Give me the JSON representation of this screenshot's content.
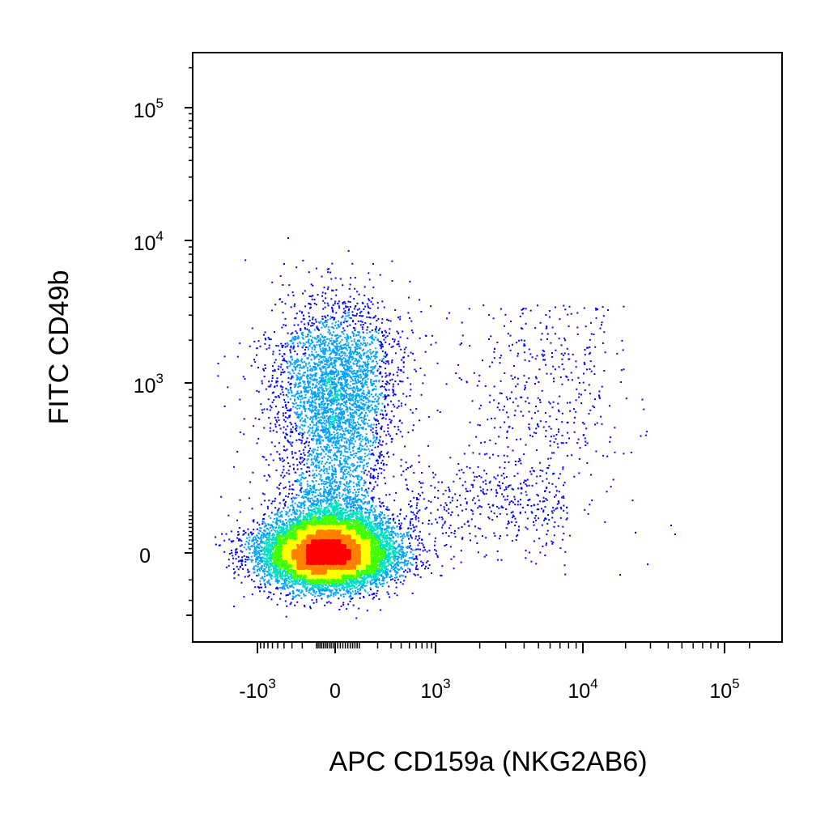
{
  "chart_data": {
    "type": "scatter",
    "title": "",
    "xlabel": "APC CD159a (NKG2AB6)",
    "ylabel": "FITC CD49b",
    "x_scale": "biexponential",
    "y_scale": "biexponential",
    "xlim": [
      -1800,
      160000
    ],
    "ylim": [
      -250,
      260000
    ],
    "x_ticks": [
      {
        "base": "-10",
        "exp": "3"
      },
      {
        "base": "0",
        "exp": ""
      },
      {
        "base": "10",
        "exp": "3"
      },
      {
        "base": "10",
        "exp": "4"
      },
      {
        "base": "10",
        "exp": "5"
      }
    ],
    "y_ticks": [
      {
        "base": "0",
        "exp": ""
      },
      {
        "base": "10",
        "exp": "3"
      },
      {
        "base": "10",
        "exp": "4"
      },
      {
        "base": "10",
        "exp": "5"
      }
    ],
    "populations": [
      {
        "name": "",
        "center_x": 0,
        "center_y": 0,
        "density": "high",
        "n_events": 14000
      },
      {
        "name": "",
        "center_x": 0,
        "center_y": 1000,
        "density": "medium",
        "n_events": 2600
      },
      {
        "name": "",
        "center_x": 5000,
        "center_y": 800,
        "density": "low",
        "n_events": 550
      }
    ],
    "colormap": [
      "#0000ff",
      "#00a0ff",
      "#00e0c0",
      "#40ff00",
      "#ffff00",
      "#ff8000",
      "#ff0000"
    ],
    "grid": false,
    "legend": "none"
  }
}
